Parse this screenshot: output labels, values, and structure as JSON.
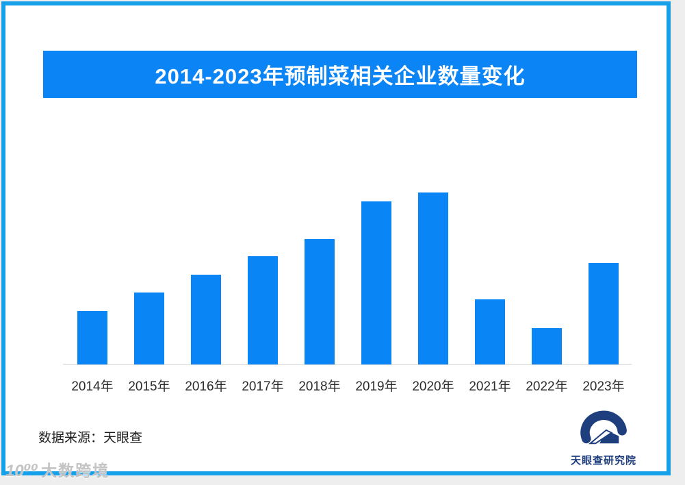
{
  "page": {
    "background_color": "#EFEEEE",
    "frame_color": "#17A0EA",
    "sheet_color": "#FFFFFF"
  },
  "banner": {
    "title": "2014-2023年预制菜相关企业数量变化",
    "background_color": "#0B84F6",
    "text_color": "#FFFFFF"
  },
  "chart_data": {
    "type": "bar",
    "title": "2014-2023年预制菜相关企业数量变化",
    "categories": [
      "2014年",
      "2015年",
      "2016年",
      "2017年",
      "2018年",
      "2019年",
      "2020年",
      "2021年",
      "2022年",
      "2023年"
    ],
    "values": [
      31,
      42,
      52,
      63,
      73,
      95,
      100,
      38,
      21,
      59
    ],
    "value_note": "chart shows no numeric axis or data labels; values are relative bar heights with tallest bar (2020) = 100",
    "bar_color": "#0A85F6",
    "axis_line_color": "#D9D9D9",
    "xlabel": "",
    "ylabel": "",
    "ylim": [
      0,
      100
    ],
    "grid": false,
    "legend": false
  },
  "source": {
    "label": "数据来源：天眼查"
  },
  "brand": {
    "name": "天眼查研究院",
    "color": "#1E3E7E"
  },
  "watermark": {
    "logo": "10⁰⁰",
    "label": "大数跨境"
  }
}
